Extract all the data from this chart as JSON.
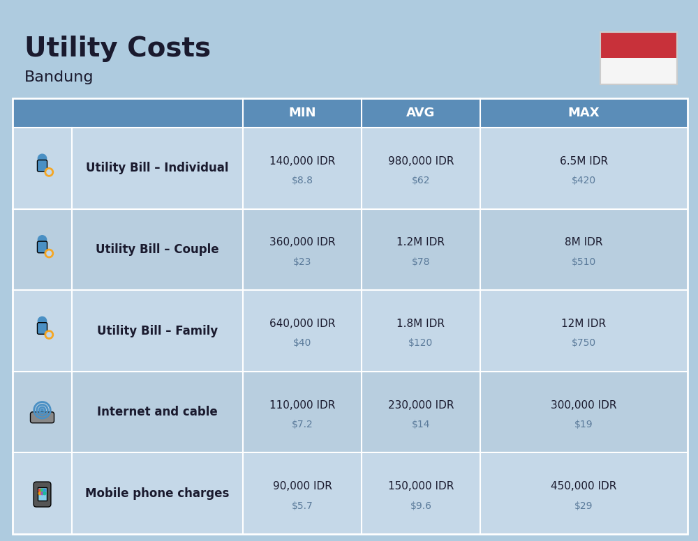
{
  "title": "Utility Costs",
  "subtitle": "Bandung",
  "background_color": "#AECBDF",
  "header_bg_color": "#5B8DB8",
  "header_text_color": "#FFFFFF",
  "row_colors": [
    "#C5D8E8",
    "#B8CEDF"
  ],
  "text_color_dark": "#1A1A2E",
  "text_color_usd": "#5A7A9A",
  "col_headers": [
    "MIN",
    "AVG",
    "MAX"
  ],
  "rows": [
    {
      "label": "Utility Bill – Individual",
      "min_idr": "140,000 IDR",
      "min_usd": "$8.8",
      "avg_idr": "980,000 IDR",
      "avg_usd": "$62",
      "max_idr": "6.5M IDR",
      "max_usd": "$420",
      "icon": "utility_individual"
    },
    {
      "label": "Utility Bill – Couple",
      "min_idr": "360,000 IDR",
      "min_usd": "$23",
      "avg_idr": "1.2M IDR",
      "avg_usd": "$78",
      "max_idr": "8M IDR",
      "max_usd": "$510",
      "icon": "utility_couple"
    },
    {
      "label": "Utility Bill – Family",
      "min_idr": "640,000 IDR",
      "min_usd": "$40",
      "avg_idr": "1.8M IDR",
      "avg_usd": "$120",
      "max_idr": "12M IDR",
      "max_usd": "$750",
      "icon": "utility_family"
    },
    {
      "label": "Internet and cable",
      "min_idr": "110,000 IDR",
      "min_usd": "$7.2",
      "avg_idr": "230,000 IDR",
      "avg_usd": "$14",
      "max_idr": "300,000 IDR",
      "max_usd": "$19",
      "icon": "internet"
    },
    {
      "label": "Mobile phone charges",
      "min_idr": "90,000 IDR",
      "min_usd": "$5.7",
      "avg_idr": "150,000 IDR",
      "avg_usd": "$9.6",
      "max_idr": "450,000 IDR",
      "max_usd": "$29",
      "icon": "mobile"
    }
  ],
  "flag_red": "#C8313A",
  "flag_white": "#F5F5F5"
}
